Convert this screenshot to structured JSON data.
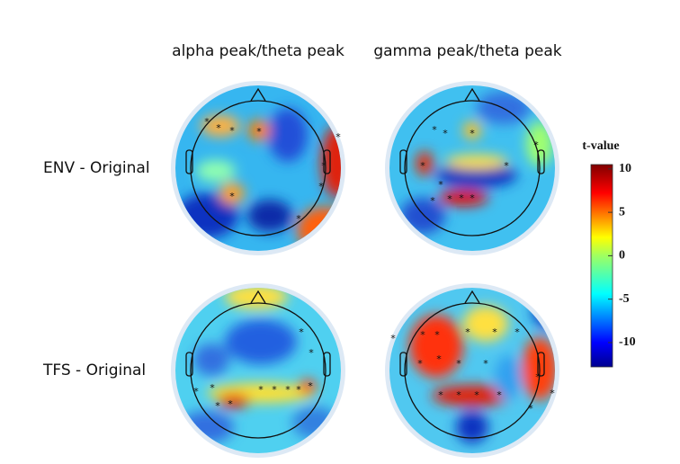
{
  "columns": [
    "alpha peak/theta peak",
    "gamma peak/theta peak"
  ],
  "rows": [
    "ENV - Original",
    "TFS - Original"
  ],
  "colorbar": {
    "title": "t-value",
    "ylim": [
      -12.8,
      10.5
    ],
    "yticks": [
      -10,
      -5,
      0,
      5,
      10
    ]
  }
}
